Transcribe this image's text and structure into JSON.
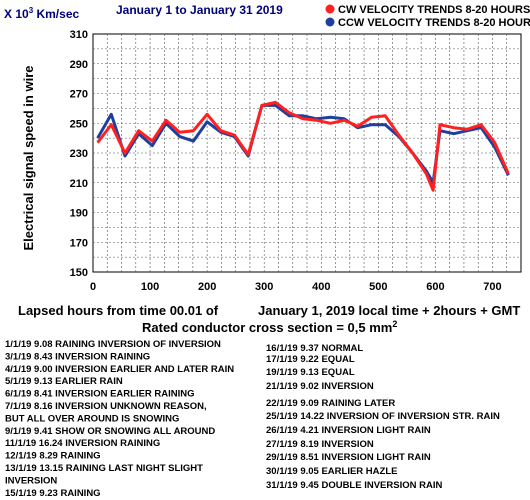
{
  "chart_data": {
    "type": "line",
    "y_unit_label": "X 10³ Km/sec",
    "title": "January  1 to  January 31    2019",
    "ylabel": "Electrical signal speed in wire",
    "xlabel_line1_left": "Lapsed hours from time 00.01 of",
    "xlabel_line1_right": "January 1,  2019  local time  + 2hours + GMT",
    "xlabel_line2": "Rated conductor cross section = 0,5 mm²",
    "xlim": [
      0,
      750
    ],
    "ylim": [
      150,
      310
    ],
    "xticks": [
      "0",
      "100",
      "200",
      "300",
      "400",
      "500",
      "600",
      "700"
    ],
    "yticks": [
      "150",
      "170",
      "190",
      "210",
      "230",
      "250",
      "270",
      "290",
      "310"
    ],
    "grid": true,
    "legend_position": "top-right",
    "series": [
      {
        "name": "CW VELOCITY TRENDS 8-20 HOURS",
        "color": "#ff2020",
        "x": [
          8,
          32,
          56,
          80,
          104,
          128,
          152,
          176,
          200,
          224,
          248,
          272,
          296,
          320,
          344,
          368,
          392,
          416,
          440,
          464,
          488,
          512,
          536,
          560,
          584,
          596,
          608,
          632,
          656,
          680,
          704,
          728
        ],
        "y": [
          237,
          249,
          230,
          245,
          238,
          252,
          244,
          245,
          256,
          245,
          242,
          229,
          262,
          264,
          257,
          253,
          252,
          250,
          252,
          248,
          254,
          255,
          242,
          230,
          216,
          205,
          249,
          247,
          246,
          249,
          237,
          216
        ]
      },
      {
        "name": "CCW VELOCITY TRENDS 8-20 HOURS",
        "color": "#1f3f9f",
        "x": [
          8,
          32,
          56,
          80,
          104,
          128,
          152,
          176,
          200,
          224,
          248,
          272,
          296,
          320,
          344,
          368,
          392,
          416,
          440,
          464,
          488,
          512,
          536,
          560,
          584,
          596,
          608,
          632,
          656,
          680,
          704,
          728
        ],
        "y": [
          240,
          256,
          228,
          243,
          235,
          250,
          241,
          238,
          251,
          244,
          241,
          228,
          262,
          262,
          255,
          255,
          253,
          254,
          253,
          247,
          249,
          249,
          241,
          230,
          218,
          210,
          245,
          243,
          245,
          247,
          234,
          215
        ]
      }
    ],
    "annotations_left": [
      "1/1/19  9.08  RAINING INVERSION OF INVERSION",
      "3/1/19  8.43  INVERSION RAINING",
      "4/1/19  9.00  INVERSION EARLIER AND LATER RAIN",
      "5/1/19  9.13  EARLIER RAIN",
      "6/1/19  8.41  INVERSION EARLIER RAINING",
      "7/1/19  8.16  INVERSION UNKNOWN REASON,",
      "BUT ALL OVER AROUND IS SNOWING",
      "9/1/19  9.41  SHOW OR SNOWING ALL AROUND",
      "11/1/19 16.24 INVERSION RAINING",
      "12/1/19 8.29 RAINING",
      "13/1/19 13.15 RAINING LAST NIGHT SLIGHT",
      "INVERSION",
      "15/1/19 9.23 RAINING"
    ],
    "annotations_right": [
      "16/1/19 9.37 NORMAL",
      "17/1/19 9.22 EQUAL",
      "19/1/19 9.13 EQUAL",
      "21/1/19 9.02 INVERSION",
      "22/1/19 9.09 RAINING LATER",
      "25/1/19 14.22 INVERSION OF INVERSION STR. RAIN",
      "26/1/19  4.21 INVERSION LIGHT RAIN",
      "27/1/19  8.19 INVERSION",
      "29/1/19  8.51 INVERSION LIGHT RAIN",
      "30/1/19  9.05  EARLIER HAZLE",
      "31/1/19 9.45 DOUBLE INVERSION RAIN"
    ]
  }
}
